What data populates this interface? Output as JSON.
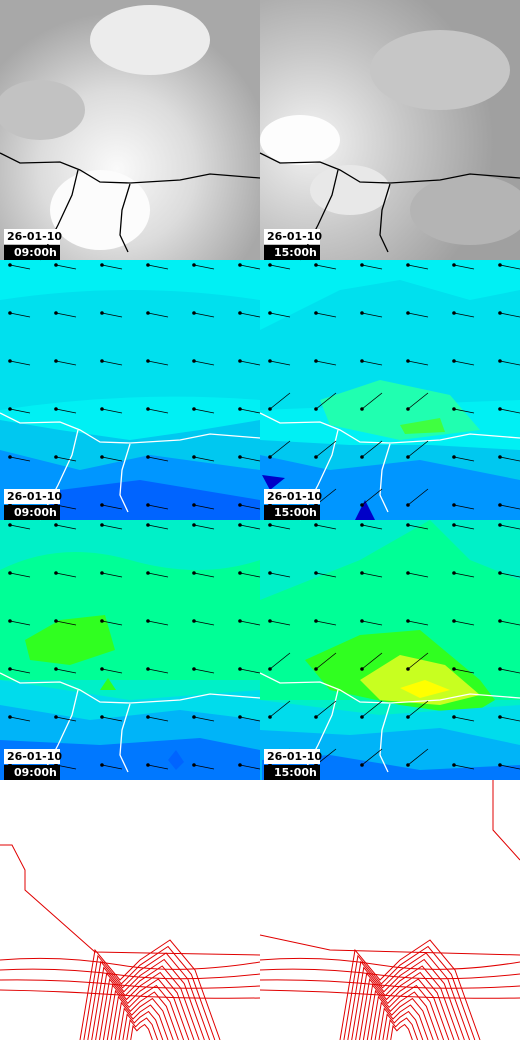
{
  "panels": [
    {
      "date": "26-01-10",
      "time": "09:00h"
    },
    {
      "date": "26-01-10",
      "time": "15:00h"
    },
    {
      "date": "26-01-10",
      "time": "09:00h"
    },
    {
      "date": "26-01-10",
      "time": "15:00h"
    },
    {
      "date": "26-01-10",
      "time": "09:00h"
    },
    {
      "date": "26-01-10",
      "time": "15:00h"
    }
  ]
}
